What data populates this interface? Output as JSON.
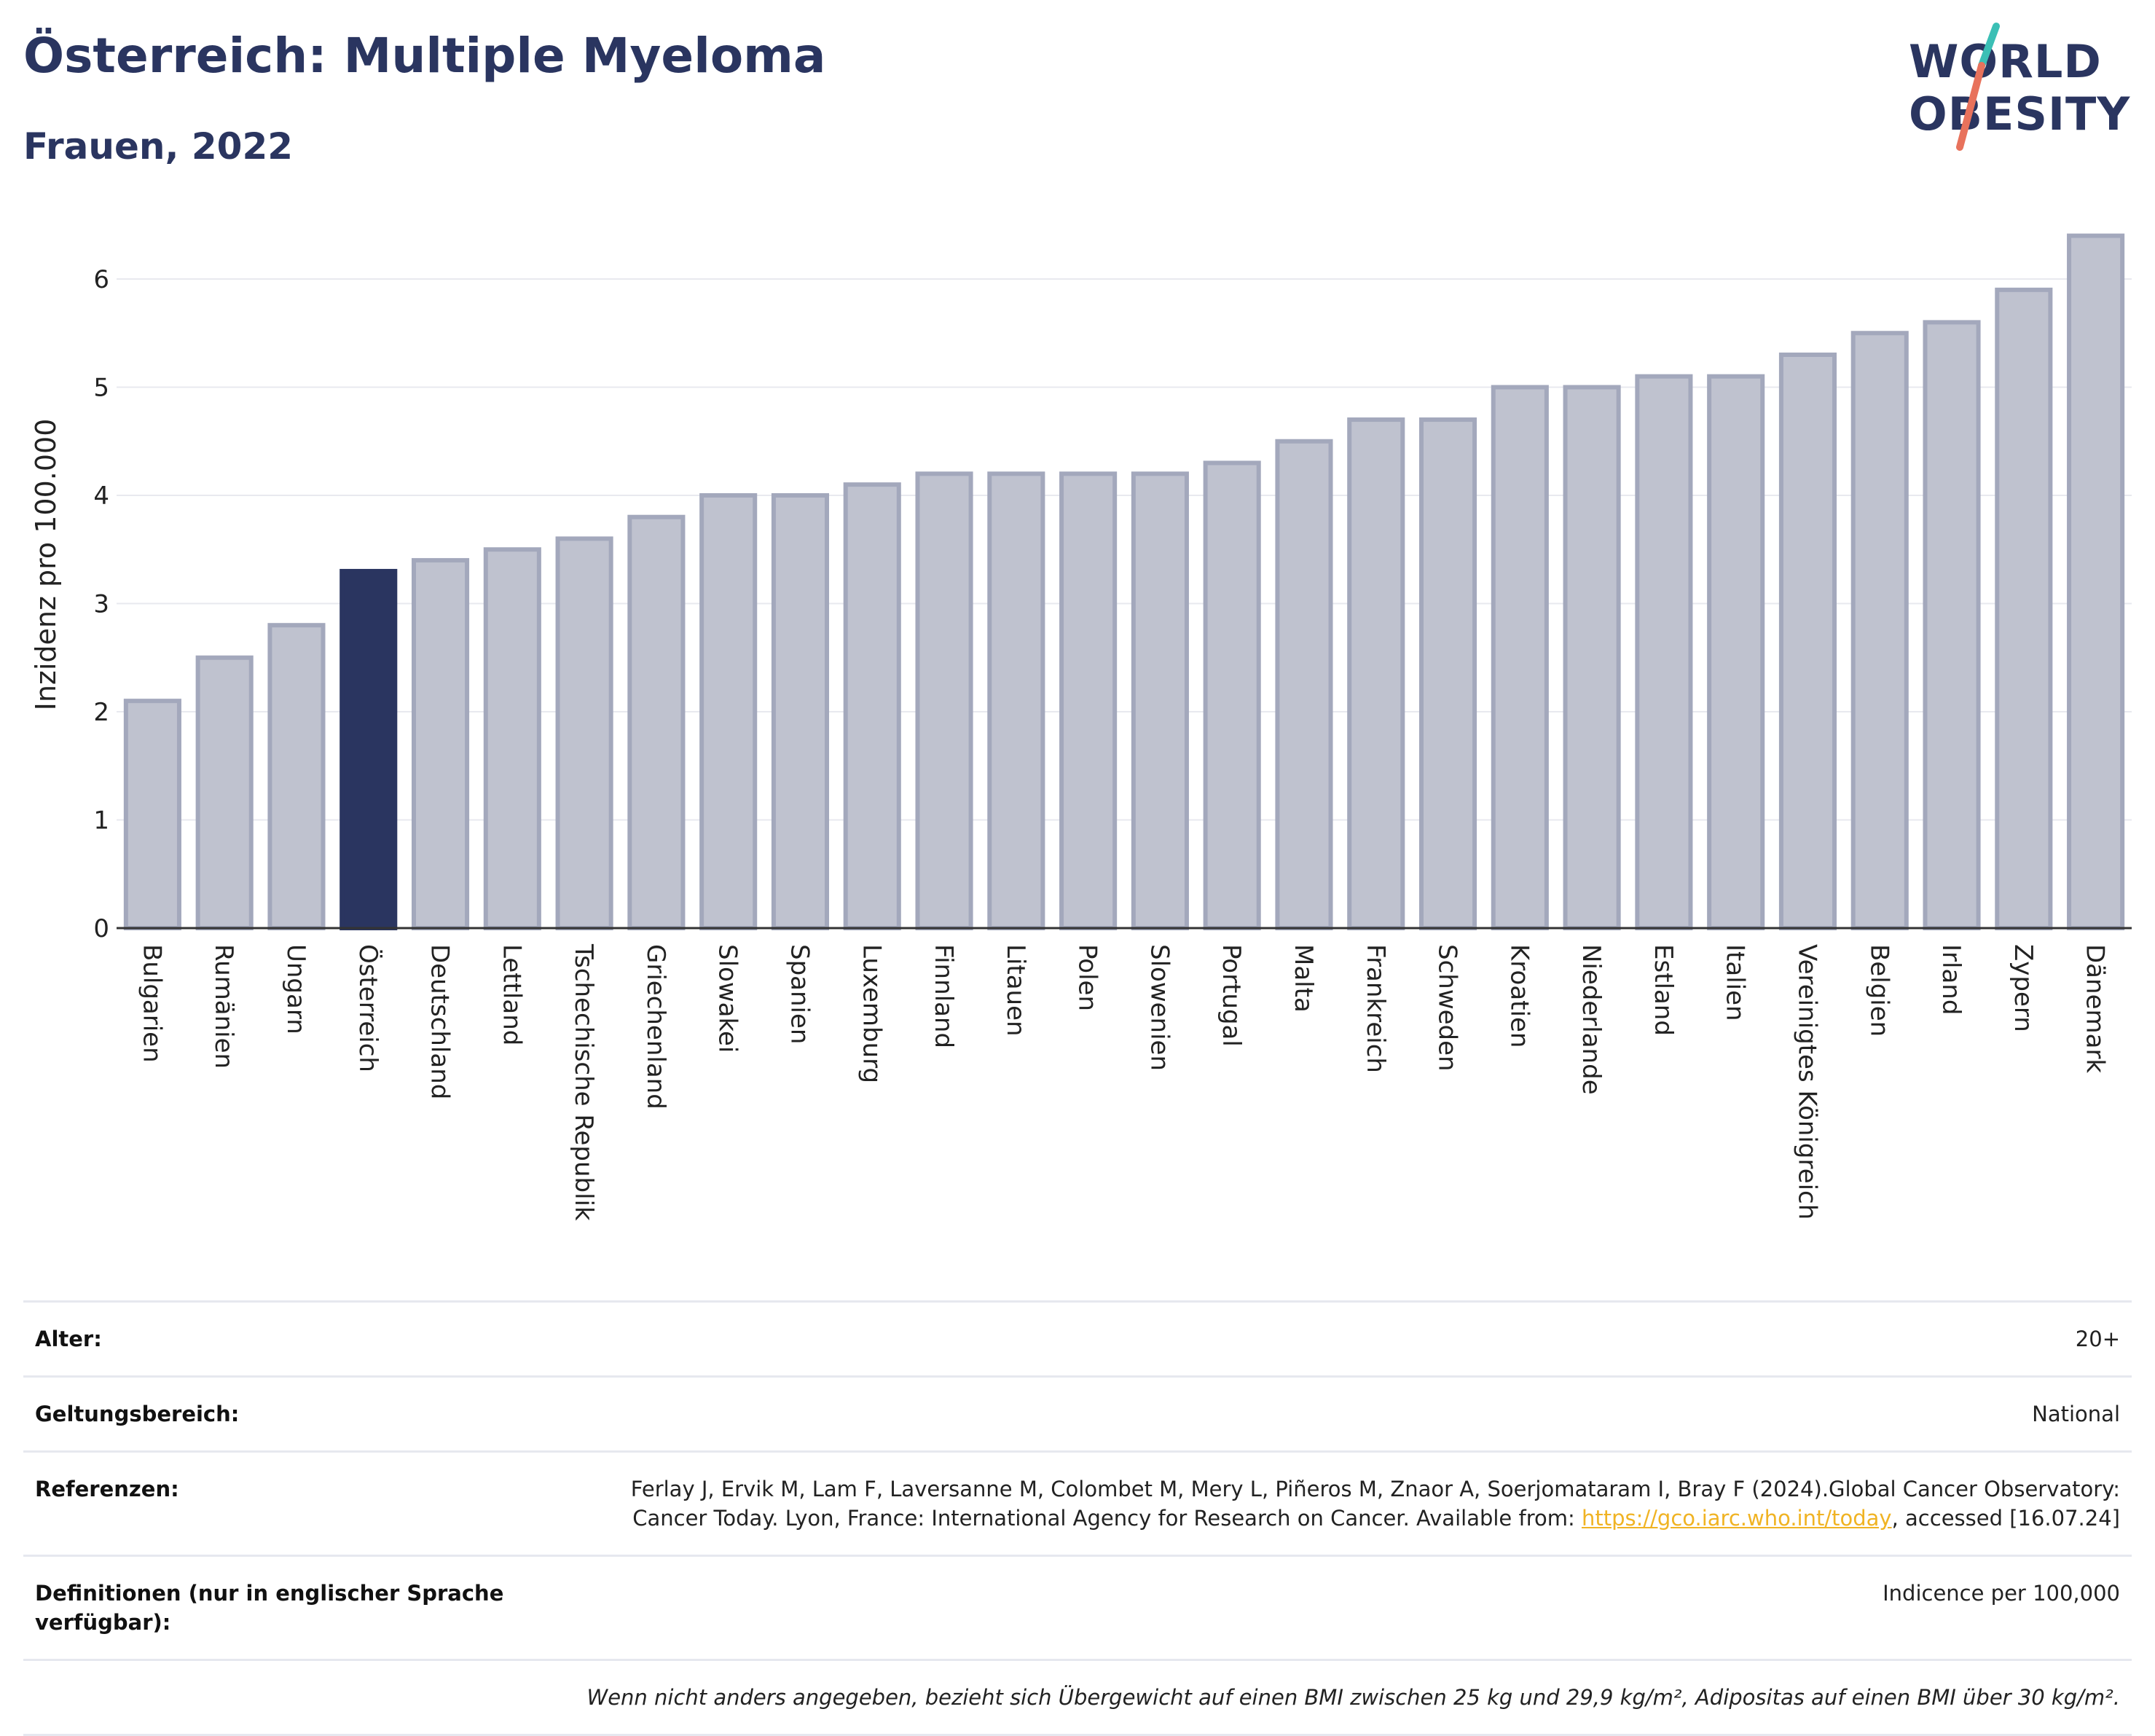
{
  "title": "Österreich: Multiple Myeloma",
  "subtitle": "Frauen, 2022",
  "logo": {
    "line1": "WORLD",
    "line2": "OBESITY"
  },
  "colors": {
    "highlight": "#2a3560",
    "bar": "#bfc2cf",
    "bar_edge": "#a3a8bc",
    "grid": "#e8e9ef",
    "logo_teal": "#3bbfb5",
    "logo_coral": "#e8725c",
    "link": "#f0b323"
  },
  "chart_data": {
    "type": "bar",
    "ylabel": "Inzidenz pro 100.000",
    "xlabel": "",
    "ylim": [
      0,
      6.5
    ],
    "yticks": [
      0,
      1,
      2,
      3,
      4,
      5,
      6
    ],
    "grid": true,
    "highlight": "Österreich",
    "categories": [
      "Bulgarien",
      "Rumänien",
      "Ungarn",
      "Österreich",
      "Deutschland",
      "Lettland",
      "Tschechische Republik",
      "Griechenland",
      "Slowakei",
      "Spanien",
      "Luxemburg",
      "Finnland",
      "Litauen",
      "Polen",
      "Slowenien",
      "Portugal",
      "Malta",
      "Frankreich",
      "Schweden",
      "Kroatien",
      "Niederlande",
      "Estland",
      "Italien",
      "Vereinigtes Königreich",
      "Belgien",
      "Irland",
      "Zypern",
      "Dänemark"
    ],
    "values": [
      2.1,
      2.5,
      2.8,
      3.3,
      3.4,
      3.5,
      3.6,
      3.8,
      4.0,
      4.0,
      4.1,
      4.2,
      4.2,
      4.2,
      4.2,
      4.3,
      4.5,
      4.7,
      4.7,
      5.0,
      5.0,
      5.1,
      5.1,
      5.3,
      5.5,
      5.6,
      5.9,
      6.4
    ]
  },
  "info": {
    "age_label": "Alter:",
    "age_value": "20+",
    "scope_label": "Geltungsbereich:",
    "scope_value": "National",
    "refs_label": "Referenzen:",
    "refs_text1": "Ferlay J, Ervik M, Lam F, Laversanne M, Colombet M, Mery L, Piñeros M, Znaor A, Soerjomataram I, Bray F (2024).Global Cancer Observatory: Cancer Today. Lyon, France: International Agency for Research on Cancer. Available from: ",
    "refs_link": "https://gco.iarc.who.int/today",
    "refs_text2": ", accessed [16.07.24]",
    "defs_label": "Definitionen (nur in englischer Sprache verfügbar):",
    "defs_value": "Indicence per 100,000",
    "note": "Wenn nicht anders angegeben, bezieht sich Übergewicht auf einen BMI zwischen 25 kg und 29,9 kg/m², Adipositas auf einen BMI über 30 kg/m²."
  }
}
